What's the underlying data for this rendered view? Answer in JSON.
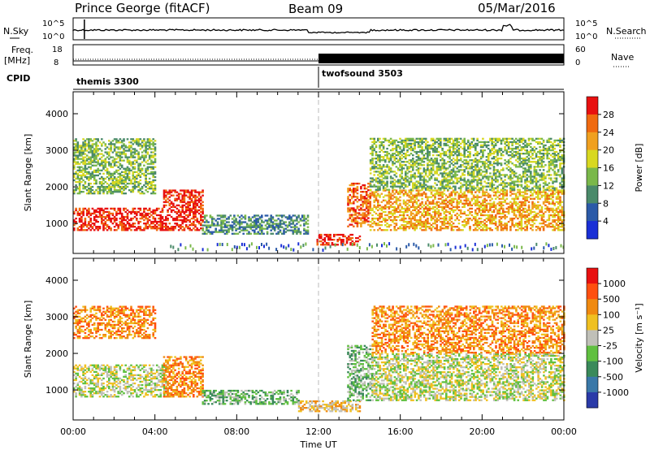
{
  "header": {
    "station": "Prince George (fitACF)",
    "beam": "Beam 09",
    "date": "05/Mar/2016"
  },
  "status": {
    "nsky_label": "N.Sky",
    "nsky_ticks": [
      "10^5",
      "10^0"
    ],
    "nsearch_label": "N.Search",
    "nsearch_ticks": [
      "10^5",
      "10^0"
    ],
    "freq_label_1": "Freq.",
    "freq_label_2": "[MHz]",
    "freq_ticks": [
      "18",
      "8"
    ],
    "nave_label": "Nave",
    "nave_ticks": [
      "60",
      "0"
    ],
    "cpid_label": "CPID",
    "cpid_segments": [
      {
        "name": "themis 3300",
        "start_h": 0,
        "end_h": 12
      },
      {
        "name": "twofsound 3503",
        "start_h": 12,
        "end_h": 24
      }
    ]
  },
  "chart_data": [
    {
      "type": "heatmap",
      "title": "Power",
      "xlabel": "Time UT",
      "ylabel": "Slant Range [km]",
      "xlim": [
        0,
        24
      ],
      "ylim": [
        180,
        4600
      ],
      "y_ticks": [
        1000,
        2000,
        3000,
        4000
      ],
      "colorbar_label": "Power [dB]",
      "colorbar_ticks": [
        "4",
        "8",
        "12",
        "16",
        "20",
        "24",
        "28"
      ],
      "colorbar_colors": [
        "#1a2fd6",
        "#2b5aa8",
        "#4a8a6a",
        "#7ab84a",
        "#d8d820",
        "#f0a020",
        "#f06a10",
        "#e81010"
      ],
      "echo_regions": [
        {
          "t0": 0.0,
          "t1": 4.4,
          "r0": 800,
          "r1": 1400,
          "level": 7
        },
        {
          "t0": 4.4,
          "t1": 6.3,
          "r0": 800,
          "r1": 1900,
          "level": 7
        },
        {
          "t0": 0.0,
          "t1": 4.0,
          "r0": 1800,
          "r1": 3300,
          "level": 3
        },
        {
          "t0": 6.3,
          "t1": 11.5,
          "r0": 700,
          "r1": 1200,
          "level": 2
        },
        {
          "t0": 11.9,
          "t1": 14.0,
          "r0": 400,
          "r1": 700,
          "level": 7
        },
        {
          "t0": 13.4,
          "t1": 14.5,
          "r0": 900,
          "r1": 2100,
          "level": 6
        },
        {
          "t0": 14.5,
          "t1": 24.0,
          "r0": 800,
          "r1": 1900,
          "level": 5
        },
        {
          "t0": 14.5,
          "t1": 24.0,
          "r0": 1900,
          "r1": 3300,
          "level": 3
        }
      ]
    },
    {
      "type": "heatmap",
      "title": "Velocity",
      "xlabel": "Time UT",
      "ylabel": "Slant Range [km]",
      "xlim": [
        0,
        24
      ],
      "ylim": [
        180,
        4600
      ],
      "y_ticks": [
        1000,
        2000,
        3000,
        4000
      ],
      "x_ticks": [
        "00:00",
        "04:00",
        "08:00",
        "12:00",
        "16:00",
        "20:00",
        "00:00"
      ],
      "colorbar_label": "Velocity [m s⁻¹]",
      "colorbar_ticks": [
        "1000",
        "500",
        "100",
        "25",
        "-25",
        "-100",
        "-500",
        "-1000"
      ],
      "colorbar_colors": [
        "#2a3aa8",
        "#3a78a8",
        "#3a8a5a",
        "#60c040",
        "#c0c0b8",
        "#f0c020",
        "#f08a10",
        "#ff5010",
        "#e81010"
      ],
      "echo_regions": [
        {
          "t0": 0.0,
          "t1": 4.5,
          "r0": 800,
          "r1": 1700,
          "level": 4
        },
        {
          "t0": 4.4,
          "t1": 6.3,
          "r0": 800,
          "r1": 1900,
          "level": 6
        },
        {
          "t0": 0.0,
          "t1": 4.0,
          "r0": 2400,
          "r1": 3300,
          "level": 6
        },
        {
          "t0": 6.3,
          "t1": 11.0,
          "r0": 600,
          "r1": 1000,
          "level": 3
        },
        {
          "t0": 11.0,
          "t1": 14.0,
          "r0": 400,
          "r1": 700,
          "level": 5
        },
        {
          "t0": 13.4,
          "t1": 14.6,
          "r0": 700,
          "r1": 2200,
          "level": 3
        },
        {
          "t0": 14.6,
          "t1": 24.0,
          "r0": 700,
          "r1": 2000,
          "level": 4
        },
        {
          "t0": 14.6,
          "t1": 24.0,
          "r0": 2000,
          "r1": 3300,
          "level": 6
        }
      ]
    }
  ]
}
